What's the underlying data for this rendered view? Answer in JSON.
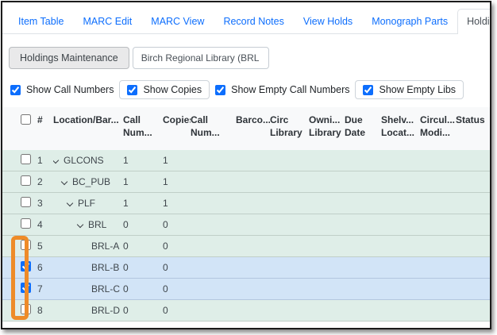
{
  "tabs": {
    "items": [
      {
        "label": "Item Table",
        "active": false
      },
      {
        "label": "MARC Edit",
        "active": false
      },
      {
        "label": "MARC View",
        "active": false
      },
      {
        "label": "Record Notes",
        "active": false
      },
      {
        "label": "View Holds",
        "active": false
      },
      {
        "label": "Monograph Parts",
        "active": false
      },
      {
        "label": "Holdings View",
        "active": true
      }
    ]
  },
  "toolbar": {
    "holdings_maintenance_label": "Holdings Maintenance",
    "library_selector_value": "Birch Regional Library (BRL"
  },
  "filters": {
    "items": [
      {
        "label": "Show Call Numbers",
        "checked": "checked",
        "boxed": false
      },
      {
        "label": "Show Copies",
        "checked": "checked",
        "boxed": true
      },
      {
        "label": "Show Empty Call Numbers",
        "checked": "checked",
        "boxed": false
      },
      {
        "label": "Show Empty Libs",
        "checked": "checked",
        "boxed": true
      }
    ]
  },
  "grid": {
    "number_header": "#",
    "columns": [
      {
        "id": "location-barcode",
        "l1": "Location/Bar...",
        "l2": ""
      },
      {
        "id": "call-number-count",
        "l1": "Call",
        "l2": "Num..."
      },
      {
        "id": "copies",
        "l1": "Copies",
        "l2": ""
      },
      {
        "id": "call-number",
        "l1": "Call",
        "l2": "Num..."
      },
      {
        "id": "barcode",
        "l1": "Barco...",
        "l2": ""
      },
      {
        "id": "circ-library",
        "l1": "Circ",
        "l2": "Library"
      },
      {
        "id": "owning-library",
        "l1": "Owni...",
        "l2": "Library"
      },
      {
        "id": "due-date",
        "l1": "Due",
        "l2": "Date"
      },
      {
        "id": "shelving-location",
        "l1": "Shelv...",
        "l2": "Locat..."
      },
      {
        "id": "circ-modifier",
        "l1": "Circul...",
        "l2": "Modi..."
      },
      {
        "id": "status",
        "l1": "Status",
        "l2": ""
      }
    ],
    "rows": [
      {
        "num": "1",
        "location": "GLCONS",
        "call_numbers": "1",
        "copies": "1",
        "depth": 0,
        "expandable": true,
        "selected": false
      },
      {
        "num": "2",
        "location": "BC_PUB",
        "call_numbers": "1",
        "copies": "1",
        "depth": 1,
        "expandable": true,
        "selected": false
      },
      {
        "num": "3",
        "location": "PLF",
        "call_numbers": "1",
        "copies": "1",
        "depth": 2,
        "expandable": true,
        "selected": false
      },
      {
        "num": "4",
        "location": "BRL",
        "call_numbers": "0",
        "copies": "0",
        "depth": 3,
        "expandable": true,
        "selected": false
      },
      {
        "num": "5",
        "location": "BRL-A",
        "call_numbers": "0",
        "copies": "0",
        "depth": 4,
        "expandable": false,
        "selected": false
      },
      {
        "num": "6",
        "location": "BRL-B",
        "call_numbers": "0",
        "copies": "0",
        "depth": 4,
        "expandable": false,
        "selected": true,
        "checked": "checked"
      },
      {
        "num": "7",
        "location": "BRL-C",
        "call_numbers": "0",
        "copies": "0",
        "depth": 4,
        "expandable": false,
        "selected": true,
        "checked": "checked"
      },
      {
        "num": "8",
        "location": "BRL-D",
        "call_numbers": "0",
        "copies": "0",
        "depth": 4,
        "expandable": false,
        "selected": false
      }
    ]
  },
  "colors": {
    "accent_blue": "#0d6efd",
    "row_green": "#dfeee8",
    "row_selected_blue": "#d2e4f7",
    "annotation_orange": "#ee8b29"
  }
}
